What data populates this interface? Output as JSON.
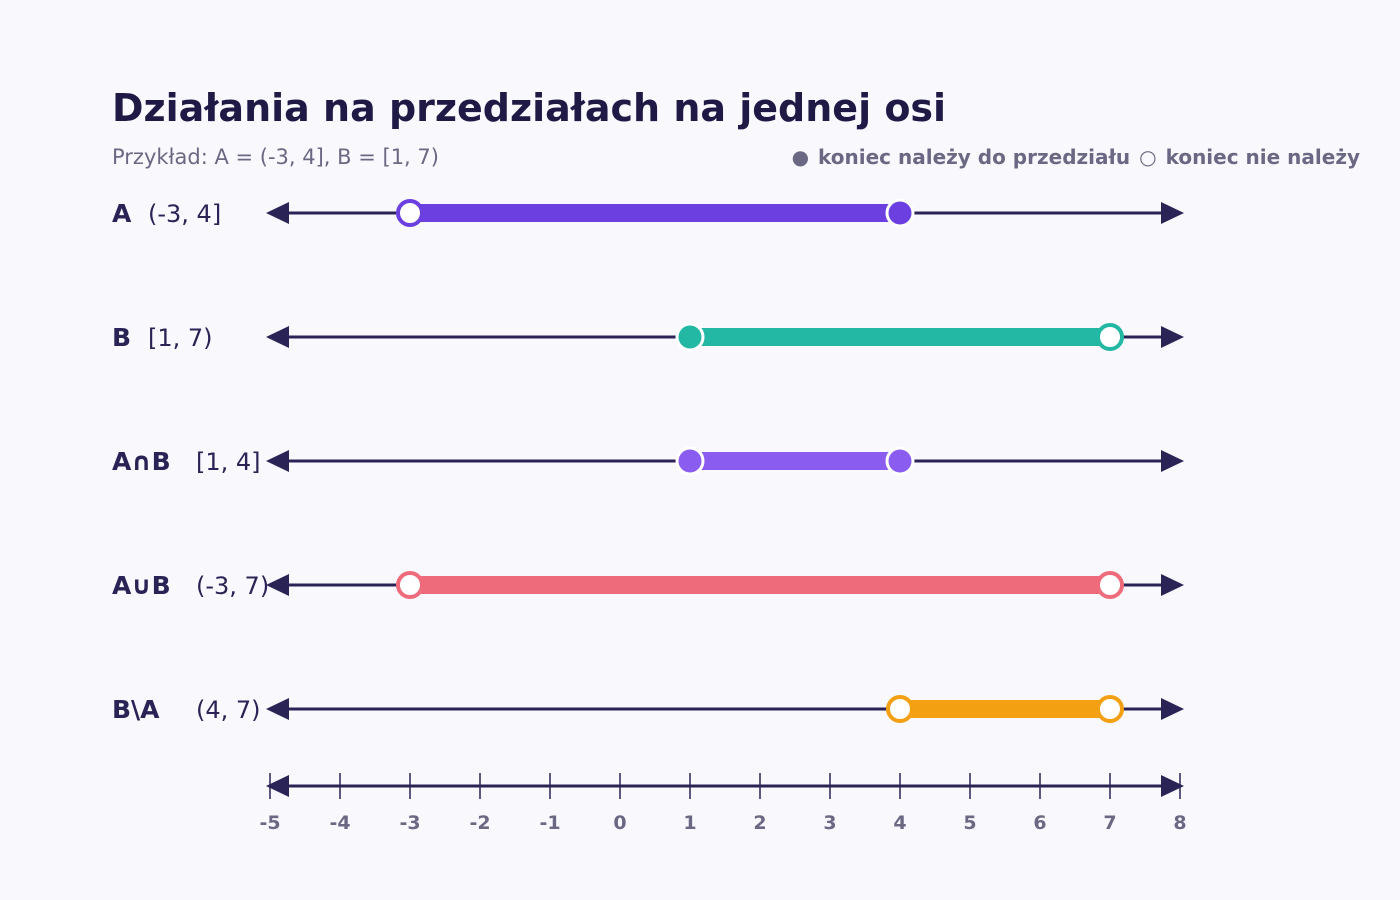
{
  "header": {
    "title": "Działania na przedziałach na jednej osi",
    "subtitle": "Przykład: A = (-3, 4], B = [1, 7)"
  },
  "legend": {
    "closed_symbol": "●",
    "closed_label": "koniec należy do przedziału",
    "open_symbol": "○",
    "open_label": "koniec nie należy"
  },
  "colors": {
    "axis": "#2a2356",
    "A": "#6b3fe0",
    "B": "#23b8a3",
    "intersection": "#8b5cf0",
    "union": "#ee6b7b",
    "difference": "#f3a012"
  },
  "chart_data": {
    "type": "number-line",
    "xlim": [
      -5,
      8
    ],
    "ticks": [
      -5,
      -4,
      -3,
      -2,
      -1,
      0,
      1,
      2,
      3,
      4,
      5,
      6,
      7,
      8
    ],
    "rows": [
      {
        "name": "A",
        "interval": "(-3, 4]",
        "from": -3,
        "to": 4,
        "from_closed": false,
        "to_closed": true,
        "color": "#6b3fe0"
      },
      {
        "name": "B",
        "interval": "[1, 7)",
        "from": 1,
        "to": 7,
        "from_closed": true,
        "to_closed": false,
        "color": "#23b8a3"
      },
      {
        "name": "A∩B",
        "interval": "[1, 4]",
        "from": 1,
        "to": 4,
        "from_closed": true,
        "to_closed": true,
        "color": "#8b5cf0"
      },
      {
        "name": "A∪B",
        "interval": "(-3, 7)",
        "from": -3,
        "to": 7,
        "from_closed": false,
        "to_closed": false,
        "color": "#ee6b7b"
      },
      {
        "name": "B\\A",
        "interval": "(4, 7)",
        "from": 4,
        "to": 7,
        "from_closed": false,
        "to_closed": false,
        "color": "#f3a012"
      }
    ]
  }
}
